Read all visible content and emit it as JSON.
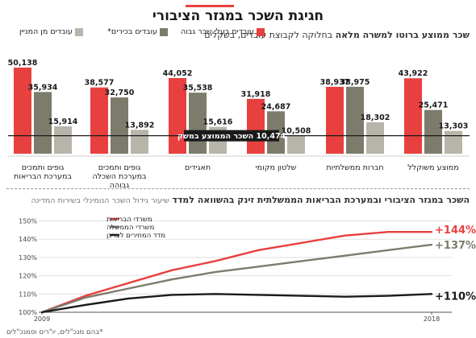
{
  "title": "חגיגת השכר במגזר הציבורי",
  "bar_section": {
    "heading_bold": "שכר ממוצע ברוטו למשרה מלאה",
    "heading_rest": "בחלוקה לקבוצת עובדים, בשקלים"
  },
  "line_section": {
    "heading_bold": "השכר במגזר הציבורי ובמערכת הבריאות הממשלתית זינק בהשוואה למדד",
    "heading_rest": "שיעור גידול השכר הנומינלי בשירות המדינה"
  },
  "footnote": "*בהם מנכ\"לים, יו\"רים וסמנכ\"לים",
  "colors": {
    "red": "#e8403f",
    "olive": "#7d7b6b",
    "light": "#b7b5aa",
    "black": "#1a1a1a"
  },
  "chart_data": [
    {
      "type": "bar",
      "legend": [
        "עובדים בעלי שכר גבוה",
        "עובדים בכירים*",
        "עובדים מן המניין"
      ],
      "categories": [
        "ממוצע משוקלל",
        "חברות ממשלתיות",
        "שלטון מקומי",
        "תאגידים",
        "גופים ותמכים במערכת השכלה גבוהה",
        "גופים ותמכים במערכת הבריאות"
      ],
      "category_lines": [
        [
          "ממוצע משוקלל"
        ],
        [
          "חברות ממשלתיות"
        ],
        [
          "שלטון מקומי"
        ],
        [
          "תאגידים"
        ],
        [
          "גופים ותמכים",
          "במערכת השכלה",
          "גבוהה"
        ],
        [
          "גופים ותמכים",
          "במערכת הבריאות"
        ]
      ],
      "series": [
        {
          "name": "עובדים בעלי שכר גבוה",
          "values": [
            43922,
            38937,
            31918,
            44052,
            38577,
            50138
          ],
          "labels": [
            "43,922",
            "38,937",
            "31,918",
            "44,052",
            "38,577",
            "50,138"
          ]
        },
        {
          "name": "עובדים בכירים*",
          "values": [
            25471,
            38975,
            24687,
            35538,
            32750,
            35934
          ],
          "labels": [
            "25,471",
            "38,975",
            "24,687",
            "35,538",
            "32,750",
            "35,934"
          ]
        },
        {
          "name": "עובדים מן המניין",
          "values": [
            13303,
            18302,
            10508,
            15616,
            13892,
            15914
          ],
          "labels": [
            "13,303",
            "18,302",
            "10,508",
            "15,616",
            "13,892",
            "15,914"
          ]
        }
      ],
      "reference_line": {
        "value": 10474,
        "label": "10,474 השכר הממוצע במשק"
      },
      "ylim": [
        0,
        52000
      ]
    },
    {
      "type": "line",
      "x": [
        2009,
        2010,
        2011,
        2012,
        2013,
        2014,
        2015,
        2016,
        2017,
        2018
      ],
      "x_tick_labels": [
        "2009",
        "2018"
      ],
      "y_ticks": [
        100,
        110,
        120,
        130,
        140,
        150
      ],
      "y_tick_labels": [
        "100%",
        "110%",
        "120%",
        "130%",
        "140%",
        "150%"
      ],
      "ylim": [
        100,
        152
      ],
      "series": [
        {
          "name": "משרדי הבריאות",
          "values": [
            100,
            109,
            116,
            123,
            128,
            134,
            138,
            142,
            144,
            144
          ],
          "end_label": "+144%"
        },
        {
          "name": "משרדי הממשלה",
          "values": [
            100,
            108,
            113,
            118,
            122,
            125,
            128,
            131,
            134,
            137
          ],
          "end_label": "+137%"
        },
        {
          "name": "מדד המחירים לצרכן",
          "values": [
            100,
            104,
            107.5,
            109.5,
            110,
            109.5,
            109,
            108.5,
            109,
            110
          ],
          "end_label": "+110%"
        }
      ]
    }
  ]
}
